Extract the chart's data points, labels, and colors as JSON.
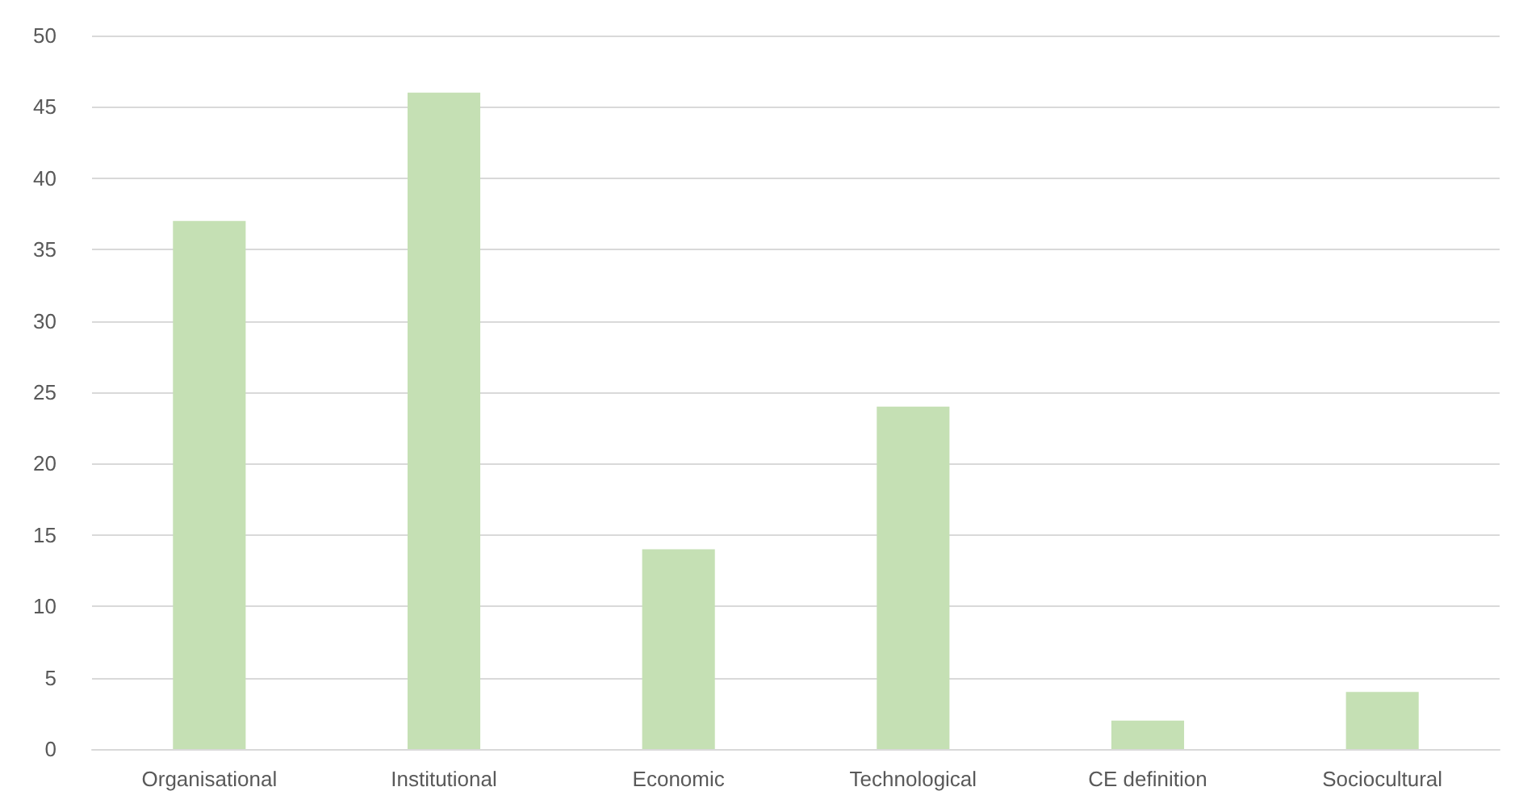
{
  "chart_data": {
    "type": "bar",
    "categories": [
      "Organisational",
      "Institutional",
      "Economic",
      "Technological",
      "CE definition",
      "Sociocultural"
    ],
    "values": [
      37,
      46,
      14,
      24,
      2,
      4
    ],
    "color": "#c5e0b4",
    "ylim": [
      0,
      50
    ],
    "yticks": [
      0,
      5,
      10,
      15,
      20,
      25,
      30,
      35,
      40,
      45,
      50
    ],
    "grid": "y"
  }
}
